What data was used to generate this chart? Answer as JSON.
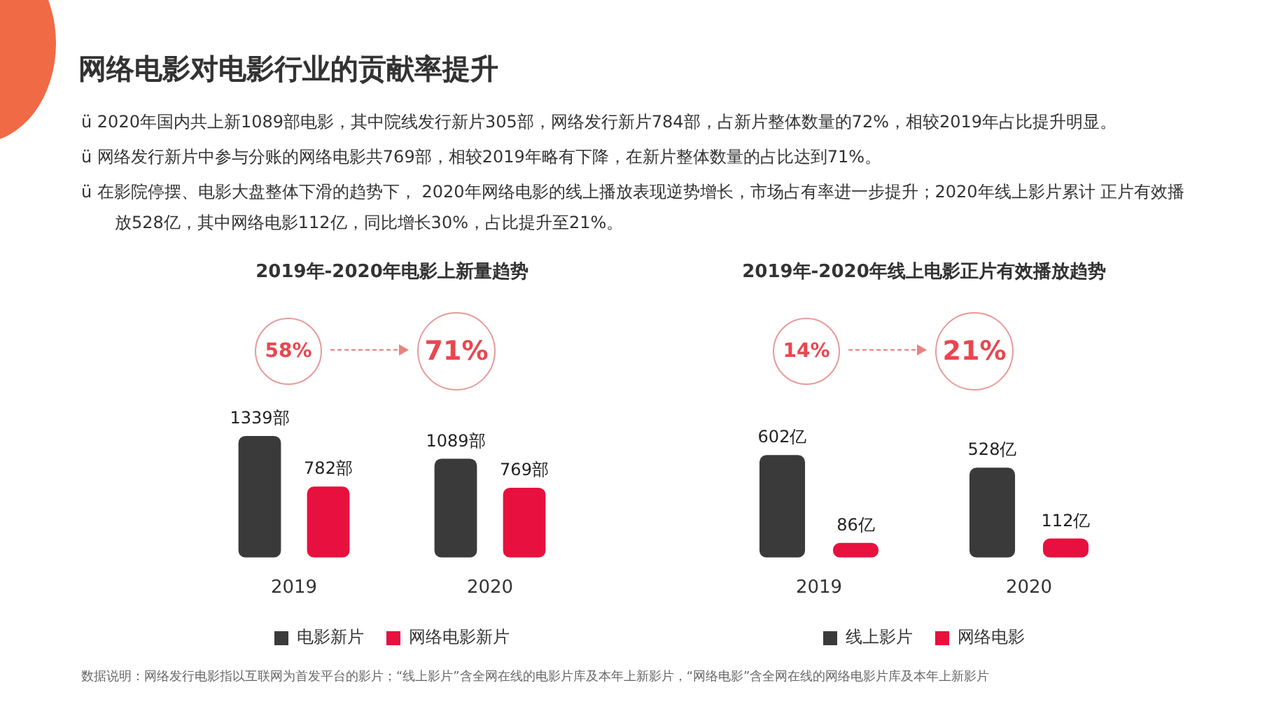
{
  "chart_data": [
    {
      "type": "other",
      "title": "网络电影对电影行业的贡献率提升",
      "annotations": [
        "ü 2020年国内共上新1089部电影，其中院线发行新片305部，网络发行新片784部，占新片整体数量的72%，相较2019年占比提升明显。",
        "ü 网络发行新片中参与分账的网络电影共769部，相较2019年略有下降，在新片整体数量的占比达到71%。",
        "ü 在影院停摆、电影大盘整体下滑的趋势下， 2020年网络电影的线上播放表现逆势增长，市场占有率进一步提升；2020年线上影片累计 正片有效播放528亿，其中网络电影112亿，同比增长30%，占比提升至21%。",
        "数据说明：网络发行电影指以互联网为首发平台的影片；“线上影片”含全网在线的电影片库及本年上新影片，“网络电影”含全网在线的网络电影片库及本年上新影片"
      ]
    },
    {
      "type": "bar",
      "title": "2019年-2020年电影上新量趋势",
      "categories": [
        "2019",
        "2020"
      ],
      "legend": "bottom",
      "annotations": [
        "58%",
        "71%"
      ],
      "series": [
        {
          "name": "电影新片",
          "color": "#3a3a3a",
          "values": [
            1339,
            1089
          ],
          "value_labels": [
            "1339部",
            "1089部"
          ]
        },
        {
          "name": "网络电影新片",
          "color": "#e8103e",
          "values": [
            782,
            769
          ],
          "value_labels": [
            "782部",
            "769部"
          ]
        }
      ]
    },
    {
      "type": "bar",
      "title": "2019年-2020年线上电影正片有效播放趋势",
      "categories": [
        "2019",
        "2020"
      ],
      "legend": "bottom",
      "annotations": [
        "14%",
        "21%"
      ],
      "series": [
        {
          "name": "线上影片",
          "color": "#3a3a3a",
          "values": [
            602,
            528
          ],
          "value_labels": [
            "602亿",
            "528亿"
          ]
        },
        {
          "name": "网络电影",
          "color": "#e8103e",
          "values": [
            86,
            112
          ],
          "value_labels": [
            "86亿",
            "112亿"
          ]
        }
      ]
    }
  ]
}
